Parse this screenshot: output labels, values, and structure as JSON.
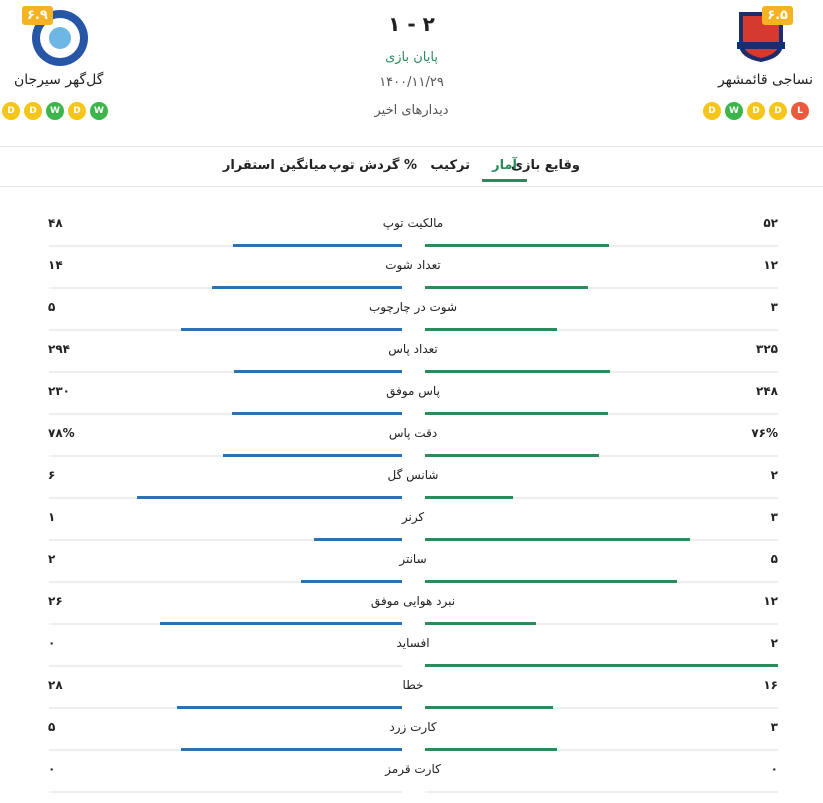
{
  "header": {
    "home": {
      "name": "نساجی قائمشهر",
      "rating": "۶.۵",
      "form": [
        "D",
        "W",
        "D",
        "D",
        "L"
      ]
    },
    "away": {
      "name": "گل‌گهر سیرجان",
      "rating": "۶.۹",
      "form": [
        "D",
        "D",
        "W",
        "D",
        "W"
      ]
    },
    "score": "۱ - ۲",
    "status": "پایان بازی",
    "date": "۱۴۰۰/۱۱/۲۹",
    "recent": "دیدارهای اخیر"
  },
  "tabs": [
    "وقایع بازی",
    "آمار",
    "ترکیب",
    "گردش توپ %",
    "میانگین استقرار"
  ],
  "active_tab": 1,
  "colors": {
    "home": "#2a8c5c",
    "away": "#2a72b5",
    "D": "#f5c518",
    "W": "#3cb54a",
    "L": "#ec5a3e"
  },
  "stats": [
    {
      "name": "مالکیت توپ",
      "home": 52,
      "home_label": "۵۲",
      "away": 48,
      "away_label": "۴۸"
    },
    {
      "name": "تعداد شوت",
      "home": 12,
      "home_label": "۱۲",
      "away": 14,
      "away_label": "۱۴"
    },
    {
      "name": "شوت در چارچوب",
      "home": 3,
      "home_label": "۳",
      "away": 5,
      "away_label": "۵"
    },
    {
      "name": "تعداد پاس",
      "home": 325,
      "home_label": "۳۲۵",
      "away": 294,
      "away_label": "۲۹۴"
    },
    {
      "name": "پاس موفق",
      "home": 248,
      "home_label": "۲۴۸",
      "away": 230,
      "away_label": "۲۳۰"
    },
    {
      "name": "دقت پاس",
      "home": 76,
      "home_label": "۷۶%",
      "away": 78,
      "away_label": "۷۸%"
    },
    {
      "name": "شانس گل",
      "home": 2,
      "home_label": "۲",
      "away": 6,
      "away_label": "۶"
    },
    {
      "name": "کرنر",
      "home": 3,
      "home_label": "۳",
      "away": 1,
      "away_label": "۱"
    },
    {
      "name": "سانتر",
      "home": 5,
      "home_label": "۵",
      "away": 2,
      "away_label": "۲"
    },
    {
      "name": "نبرد هوایی موفق",
      "home": 12,
      "home_label": "۱۲",
      "away": 26,
      "away_label": "۲۶"
    },
    {
      "name": "افساید",
      "home": 2,
      "home_label": "۲",
      "away": 0,
      "away_label": "۰"
    },
    {
      "name": "خطا",
      "home": 16,
      "home_label": "۱۶",
      "away": 28,
      "away_label": "۲۸"
    },
    {
      "name": "کارت زرد",
      "home": 3,
      "home_label": "۳",
      "away": 5,
      "away_label": "۵"
    },
    {
      "name": "کارت قرمز",
      "home": 0,
      "home_label": "۰",
      "away": 0,
      "away_label": "۰"
    }
  ]
}
